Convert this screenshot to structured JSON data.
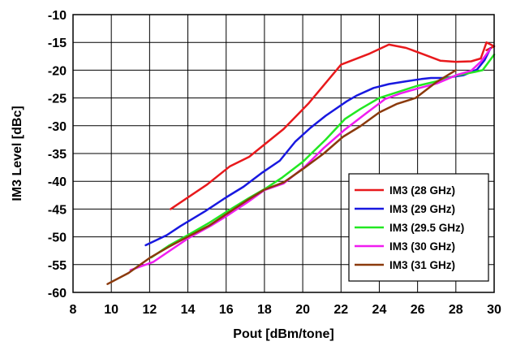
{
  "chart_data": {
    "type": "line",
    "xlabel": "Pout [dBm/tone]",
    "ylabel": "IM3 Level [dBc]",
    "xlim": [
      8,
      30
    ],
    "ylim": [
      -60,
      -10
    ],
    "x_ticks": [
      "8",
      "10",
      "12",
      "14",
      "16",
      "18",
      "20",
      "22",
      "24",
      "26",
      "28",
      "30"
    ],
    "y_ticks": [
      "-10",
      "-15",
      "-20",
      "-25",
      "-30",
      "-35",
      "-40",
      "-45",
      "-50",
      "-55",
      "-60"
    ],
    "grid": true,
    "legend_position": "bottom-right",
    "series": [
      {
        "name": "IM3 (28 GHz)",
        "color": "#e8191c",
        "points": [
          [
            13.1,
            -45.0
          ],
          [
            15.0,
            -40.6
          ],
          [
            16.2,
            -37.3
          ],
          [
            17.2,
            -35.6
          ],
          [
            19.0,
            -30.6
          ],
          [
            20.3,
            -26.0
          ],
          [
            22.0,
            -19.0
          ],
          [
            23.5,
            -17.0
          ],
          [
            24.5,
            -15.4
          ],
          [
            25.4,
            -16.0
          ],
          [
            26.2,
            -17.0
          ],
          [
            27.2,
            -18.3
          ],
          [
            28.0,
            -18.5
          ],
          [
            28.8,
            -18.4
          ],
          [
            29.3,
            -17.9
          ],
          [
            29.6,
            -15.0
          ],
          [
            30.0,
            -15.7
          ],
          [
            29.6,
            -16.4
          ]
        ]
      },
      {
        "name": "IM3 (29 GHz)",
        "color": "#1818e0",
        "points": [
          [
            11.8,
            -51.5
          ],
          [
            12.9,
            -49.7
          ],
          [
            13.6,
            -48.1
          ],
          [
            14.9,
            -45.4
          ],
          [
            16.0,
            -42.9
          ],
          [
            16.9,
            -41.0
          ],
          [
            17.9,
            -38.4
          ],
          [
            18.8,
            -36.3
          ],
          [
            19.6,
            -32.9
          ],
          [
            20.4,
            -30.4
          ],
          [
            21.2,
            -28.2
          ],
          [
            22.3,
            -25.6
          ],
          [
            22.8,
            -24.6
          ],
          [
            23.7,
            -23.2
          ],
          [
            24.5,
            -22.5
          ],
          [
            25.4,
            -22.0
          ],
          [
            26.2,
            -21.6
          ],
          [
            26.7,
            -21.4
          ],
          [
            27.4,
            -21.4
          ],
          [
            28.4,
            -20.9
          ],
          [
            29.1,
            -19.9
          ],
          [
            29.5,
            -18.2
          ],
          [
            29.8,
            -16.1
          ]
        ]
      },
      {
        "name": "IM3 (29.5 GHz)",
        "color": "#22e822",
        "points": [
          [
            12.1,
            -53.7
          ],
          [
            13.0,
            -51.6
          ],
          [
            14.0,
            -49.7
          ],
          [
            15.1,
            -47.5
          ],
          [
            16.1,
            -45.3
          ],
          [
            17.2,
            -43.0
          ],
          [
            18.1,
            -41.2
          ],
          [
            18.9,
            -39.4
          ],
          [
            20.0,
            -36.5
          ],
          [
            21.2,
            -32.5
          ],
          [
            22.2,
            -28.8
          ],
          [
            23.0,
            -27.0
          ],
          [
            24.0,
            -25.0
          ],
          [
            24.9,
            -24.0
          ],
          [
            26.0,
            -22.8
          ],
          [
            27.0,
            -22.0
          ],
          [
            28.0,
            -21.0
          ],
          [
            29.0,
            -20.3
          ],
          [
            29.4,
            -20.0
          ],
          [
            30.0,
            -17.2
          ]
        ]
      },
      {
        "name": "IM3 (30 GHz)",
        "color": "#f01cf0",
        "points": [
          [
            11.0,
            -56.0
          ],
          [
            12.2,
            -54.5
          ],
          [
            13.1,
            -52.4
          ],
          [
            14.0,
            -50.3
          ],
          [
            15.2,
            -48.0
          ],
          [
            16.0,
            -46.3
          ],
          [
            17.1,
            -43.8
          ],
          [
            18.0,
            -41.6
          ],
          [
            19.0,
            -40.4
          ],
          [
            20.1,
            -37.4
          ],
          [
            21.1,
            -34.0
          ],
          [
            22.2,
            -30.7
          ],
          [
            23.3,
            -27.8
          ],
          [
            24.3,
            -25.2
          ],
          [
            25.1,
            -24.2
          ],
          [
            26.1,
            -23.2
          ],
          [
            27.0,
            -22.4
          ],
          [
            28.1,
            -20.8
          ],
          [
            28.8,
            -20.1
          ],
          [
            29.3,
            -18.5
          ],
          [
            29.8,
            -16.2
          ]
        ]
      },
      {
        "name": "IM3 (31 GHz)",
        "color": "#8b3a0c",
        "points": [
          [
            9.8,
            -58.5
          ],
          [
            10.9,
            -56.5
          ],
          [
            12.0,
            -53.8
          ],
          [
            13.0,
            -51.8
          ],
          [
            14.1,
            -49.8
          ],
          [
            15.1,
            -48.0
          ],
          [
            16.1,
            -45.7
          ],
          [
            17.1,
            -43.4
          ],
          [
            18.0,
            -41.5
          ],
          [
            19.0,
            -40.2
          ],
          [
            20.0,
            -37.8
          ],
          [
            21.1,
            -35.0
          ],
          [
            22.1,
            -32.0
          ],
          [
            23.0,
            -30.1
          ],
          [
            24.0,
            -27.6
          ],
          [
            24.9,
            -26.1
          ],
          [
            25.9,
            -25.0
          ],
          [
            27.0,
            -22.1
          ],
          [
            28.0,
            -20.0
          ]
        ]
      }
    ]
  }
}
